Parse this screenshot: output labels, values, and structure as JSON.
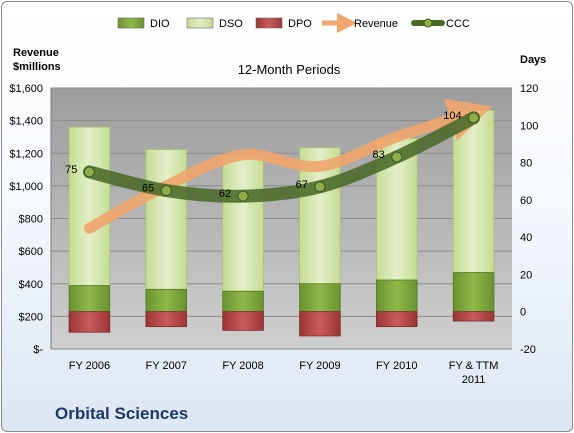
{
  "chart_data": {
    "type": "bar+line",
    "title": "12-Month Periods",
    "company": "Orbital Sciences",
    "left_axis_label_lines": [
      "Revenue",
      "$millions"
    ],
    "right_axis_label": "Days",
    "categories": [
      [
        "FY 2006"
      ],
      [
        "FY 2007"
      ],
      [
        "FY 2008"
      ],
      [
        "FY 2009"
      ],
      [
        "FY 2010"
      ],
      [
        "FY & TTM",
        "2011"
      ]
    ],
    "left_axis": {
      "min": 0,
      "max": 1600,
      "ticks": [
        0,
        200,
        400,
        600,
        800,
        1000,
        1200,
        1400,
        1600
      ],
      "tick_labels": [
        "$-",
        "$200",
        "$400",
        "$600",
        "$800",
        "$1,000",
        "$1,200",
        "$1,400",
        "$1,600"
      ]
    },
    "right_axis": {
      "min": -20,
      "max": 120,
      "ticks": [
        -20,
        0,
        20,
        40,
        60,
        80,
        100,
        120
      ]
    },
    "series": [
      {
        "name": "DIO",
        "axis": "days",
        "kind": "bar",
        "values": [
          14,
          12,
          11,
          15,
          17,
          21
        ]
      },
      {
        "name": "DSO",
        "axis": "days",
        "kind": "bar",
        "values": [
          85,
          75,
          73,
          73,
          76,
          87
        ]
      },
      {
        "name": "DPO",
        "axis": "days",
        "kind": "bar",
        "values": [
          -11,
          -8,
          -10,
          -13,
          -8,
          -5
        ]
      },
      {
        "name": "Revenue",
        "axis": "revenue",
        "kind": "line",
        "values": [
          740,
          1000,
          1190,
          1120,
          1300,
          1450
        ]
      },
      {
        "name": "CCC",
        "axis": "days",
        "kind": "line",
        "values": [
          75,
          65,
          62,
          67,
          83,
          104
        ]
      }
    ],
    "ccc_labels": [
      "75",
      "65",
      "62",
      "67",
      "83",
      "104"
    ],
    "legend_placement": "top",
    "grid": true,
    "colors": {
      "dio": "#7fa53a",
      "dso": "#d6e6b0",
      "dpo": "#b84a4a",
      "revenue": "#f0a66c",
      "ccc": "#4a6a28",
      "plot_bg": "#b3b3b3"
    }
  }
}
